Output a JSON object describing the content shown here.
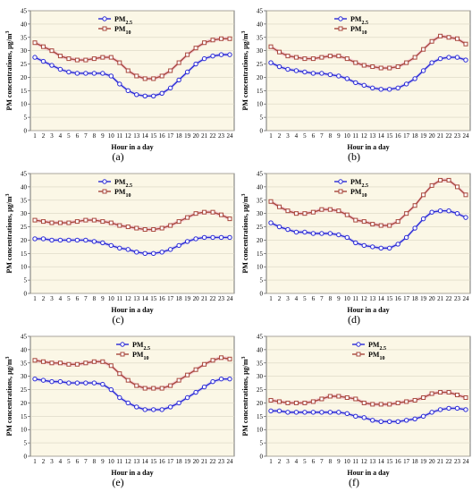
{
  "chart_data": [
    {
      "panel": "(a)",
      "type": "line",
      "xlabel": "Hour in a day",
      "ylabel": "PM concentrations, μg/m3",
      "ylim": [
        0,
        45
      ],
      "yticks": [
        0,
        5,
        10,
        15,
        20,
        25,
        30,
        35,
        40,
        45
      ],
      "categories": [
        1,
        2,
        3,
        4,
        5,
        6,
        7,
        8,
        9,
        10,
        11,
        12,
        13,
        14,
        15,
        16,
        17,
        18,
        19,
        20,
        21,
        22,
        23,
        24
      ],
      "legend_position": "top-center",
      "series": [
        {
          "name": "PM2.5",
          "color": "#2a2ad6",
          "values": [
            27.5,
            26,
            24.5,
            23,
            22,
            21.5,
            21.5,
            21.5,
            21.5,
            20.5,
            17.5,
            15,
            13.5,
            13,
            13,
            14,
            16,
            19,
            22,
            25,
            27,
            28,
            28.5,
            28.5
          ]
        },
        {
          "name": "PM10",
          "color": "#a8483c",
          "values": [
            33,
            31.5,
            30,
            28,
            27,
            26.5,
            26.5,
            27,
            27.5,
            27.5,
            25.5,
            22.5,
            20.5,
            19.5,
            19.5,
            20.5,
            22.5,
            25.5,
            28.5,
            31,
            33,
            34,
            34.5,
            34.5
          ]
        }
      ]
    },
    {
      "panel": "(b)",
      "type": "line",
      "xlabel": "Hour in a day",
      "ylabel": "PM concentrations, μg/m3",
      "ylim": [
        0,
        45
      ],
      "yticks": [
        0,
        5,
        10,
        15,
        20,
        25,
        30,
        35,
        40,
        45
      ],
      "categories": [
        1,
        2,
        3,
        4,
        5,
        6,
        7,
        8,
        9,
        10,
        11,
        12,
        13,
        14,
        15,
        16,
        17,
        18,
        19,
        20,
        21,
        22,
        23,
        24
      ],
      "legend_position": "top-center",
      "series": [
        {
          "name": "PM2.5",
          "color": "#2a2ad6",
          "values": [
            25.5,
            24,
            23,
            22.5,
            22,
            21.5,
            21.5,
            21,
            20.5,
            19.5,
            18,
            17,
            16,
            15.5,
            15.5,
            16,
            17.5,
            19.5,
            22.5,
            25.5,
            27,
            27.5,
            27.5,
            26.5
          ]
        },
        {
          "name": "PM10",
          "color": "#a8483c",
          "values": [
            31.5,
            29.5,
            28,
            27.5,
            27,
            27,
            27.5,
            28,
            28,
            27,
            25.5,
            24.5,
            24,
            23.5,
            23.5,
            24,
            25.5,
            27.5,
            30.5,
            33.5,
            35.5,
            35,
            34.5,
            32.5
          ]
        }
      ]
    },
    {
      "panel": "(c)",
      "type": "line",
      "xlabel": "Hour in a day",
      "ylabel": "PM concentrations, μg/m3",
      "ylim": [
        0,
        45
      ],
      "yticks": [
        0,
        5,
        10,
        15,
        20,
        25,
        30,
        35,
        40,
        45
      ],
      "categories": [
        1,
        2,
        3,
        4,
        5,
        6,
        7,
        8,
        9,
        10,
        11,
        12,
        13,
        14,
        15,
        16,
        17,
        18,
        19,
        20,
        21,
        22,
        23,
        24
      ],
      "legend_position": "top-center",
      "series": [
        {
          "name": "PM2.5",
          "color": "#2a2ad6",
          "values": [
            20.5,
            20.5,
            20,
            20,
            20,
            20,
            20,
            19.5,
            19,
            18,
            17,
            16.5,
            15.5,
            15,
            15,
            15.5,
            16.5,
            18,
            19.5,
            20.5,
            21,
            21,
            21,
            21
          ]
        },
        {
          "name": "PM10",
          "color": "#a8483c",
          "values": [
            27.5,
            27,
            26.5,
            26.5,
            26.5,
            27,
            27.5,
            27.5,
            27,
            26.5,
            25.5,
            25,
            24.5,
            24,
            24,
            24.5,
            25.5,
            27,
            28.5,
            30,
            30.5,
            30.5,
            29.5,
            28
          ]
        }
      ]
    },
    {
      "panel": "(d)",
      "type": "line",
      "xlabel": "Hour in a day",
      "ylabel": "PM concentrations, μg/m3",
      "ylim": [
        0,
        45
      ],
      "yticks": [
        0,
        5,
        10,
        15,
        20,
        25,
        30,
        35,
        40,
        45
      ],
      "categories": [
        1,
        2,
        3,
        4,
        5,
        6,
        7,
        8,
        9,
        10,
        11,
        12,
        13,
        14,
        15,
        16,
        17,
        18,
        19,
        20,
        21,
        22,
        23,
        24
      ],
      "legend_position": "top-center",
      "series": [
        {
          "name": "PM2.5",
          "color": "#2a2ad6",
          "values": [
            26.5,
            25,
            24,
            23,
            23,
            22.5,
            22.5,
            22.5,
            22,
            21,
            19,
            18,
            17.5,
            17,
            17,
            18.5,
            21,
            24.5,
            28,
            30.5,
            31,
            31,
            30,
            28.5
          ]
        },
        {
          "name": "PM10",
          "color": "#a8483c",
          "values": [
            34.5,
            32.5,
            31,
            30,
            30,
            30.5,
            31.5,
            31.5,
            31,
            29.5,
            27.5,
            27,
            26,
            25.5,
            25.5,
            27,
            30,
            33,
            37,
            40.5,
            42.5,
            42.5,
            40,
            37
          ]
        }
      ]
    },
    {
      "panel": "(e)",
      "type": "line",
      "xlabel": "Hour in a day",
      "ylabel": "PM concentrations, μg/m3",
      "ylim": [
        0,
        45
      ],
      "yticks": [
        0,
        5,
        10,
        15,
        20,
        25,
        30,
        35,
        40,
        45
      ],
      "categories": [
        1,
        2,
        3,
        4,
        5,
        6,
        7,
        8,
        9,
        10,
        11,
        12,
        13,
        14,
        15,
        16,
        17,
        18,
        19,
        20,
        21,
        22,
        23,
        24
      ],
      "legend_position": "top-right",
      "series": [
        {
          "name": "PM2.5",
          "color": "#2a2ad6",
          "values": [
            29,
            28.5,
            28,
            28,
            27.5,
            27.5,
            27.5,
            27.5,
            27,
            25,
            22,
            20,
            18.5,
            17.5,
            17.5,
            17.5,
            18.5,
            20,
            22,
            24,
            26,
            28,
            29,
            29
          ]
        },
        {
          "name": "PM10",
          "color": "#a8483c",
          "values": [
            36,
            35.5,
            35,
            35,
            34.5,
            34.5,
            35,
            35.5,
            35.5,
            34,
            31,
            28.5,
            26.5,
            25.5,
            25.5,
            25.5,
            26.5,
            28.5,
            30.5,
            32.5,
            34.5,
            36,
            37,
            36.5
          ]
        }
      ]
    },
    {
      "panel": "(f)",
      "type": "line",
      "xlabel": "Hour in a day",
      "ylabel": "PM concentrations, μg/m3",
      "ylim": [
        0,
        45
      ],
      "yticks": [
        0,
        5,
        10,
        15,
        20,
        25,
        30,
        35,
        40,
        45
      ],
      "categories": [
        1,
        2,
        3,
        4,
        5,
        6,
        7,
        8,
        9,
        10,
        11,
        12,
        13,
        14,
        15,
        16,
        17,
        18,
        19,
        20,
        21,
        22,
        23,
        24
      ],
      "legend_position": "top-right",
      "series": [
        {
          "name": "PM2.5",
          "color": "#2a2ad6",
          "values": [
            17,
            17,
            16.5,
            16.5,
            16.5,
            16.5,
            16.5,
            16.5,
            16.5,
            16,
            15,
            14.5,
            13.5,
            13,
            13,
            13,
            13.5,
            14,
            15,
            16.5,
            17.5,
            18,
            18,
            17.5
          ]
        },
        {
          "name": "PM10",
          "color": "#a8483c",
          "values": [
            21,
            20.5,
            20,
            20,
            20,
            20.5,
            21.5,
            22.5,
            22.5,
            22,
            21.5,
            20,
            19.5,
            19.5,
            19.5,
            20,
            20.5,
            21,
            22,
            23.5,
            24,
            24,
            23,
            22
          ]
        }
      ]
    }
  ]
}
